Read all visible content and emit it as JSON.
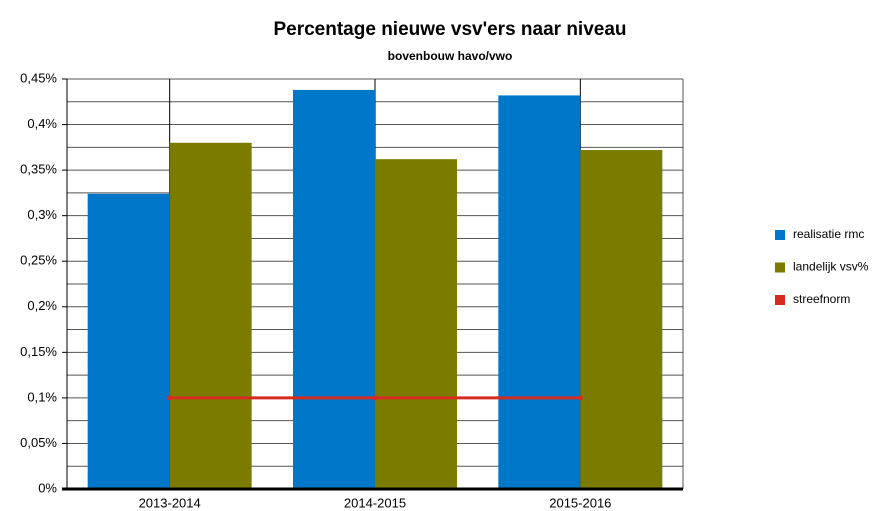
{
  "chart_data": {
    "type": "bar",
    "title": "Percentage nieuwe vsv'ers naar niveau",
    "subtitle": "bovenbouw havo/vwo",
    "categories": [
      "2013-2014",
      "2014-2015",
      "2015-2016"
    ],
    "series": [
      {
        "name": "realisatie rmc",
        "color": "#0077c8",
        "type": "bar",
        "values": [
          0.324,
          0.438,
          0.432
        ]
      },
      {
        "name": "landelijk vsv%",
        "color": "#7b7b00",
        "type": "bar",
        "values": [
          0.38,
          0.362,
          0.372
        ]
      },
      {
        "name": "streefnorm",
        "color": "#d62c20",
        "type": "line",
        "values": [
          0.1,
          0.1,
          0.1
        ]
      }
    ],
    "ylim": [
      0,
      0.45
    ],
    "yticks": [
      {
        "value": 0,
        "label": "0%"
      },
      {
        "value": 0.05,
        "label": "0,05%"
      },
      {
        "value": 0.1,
        "label": "0,1%"
      },
      {
        "value": 0.15,
        "label": "0,15%"
      },
      {
        "value": 0.2,
        "label": "0,2%"
      },
      {
        "value": 0.25,
        "label": "0,25%"
      },
      {
        "value": 0.3,
        "label": "0,3%"
      },
      {
        "value": 0.35,
        "label": "0,35%"
      },
      {
        "value": 0.4,
        "label": "0,4%"
      },
      {
        "value": 0.45,
        "label": "0,45%"
      }
    ],
    "minor_yticks": [
      0.025,
      0.075,
      0.125,
      0.175,
      0.225,
      0.275,
      0.325,
      0.375,
      0.425
    ],
    "grid": true,
    "legend": "right"
  }
}
